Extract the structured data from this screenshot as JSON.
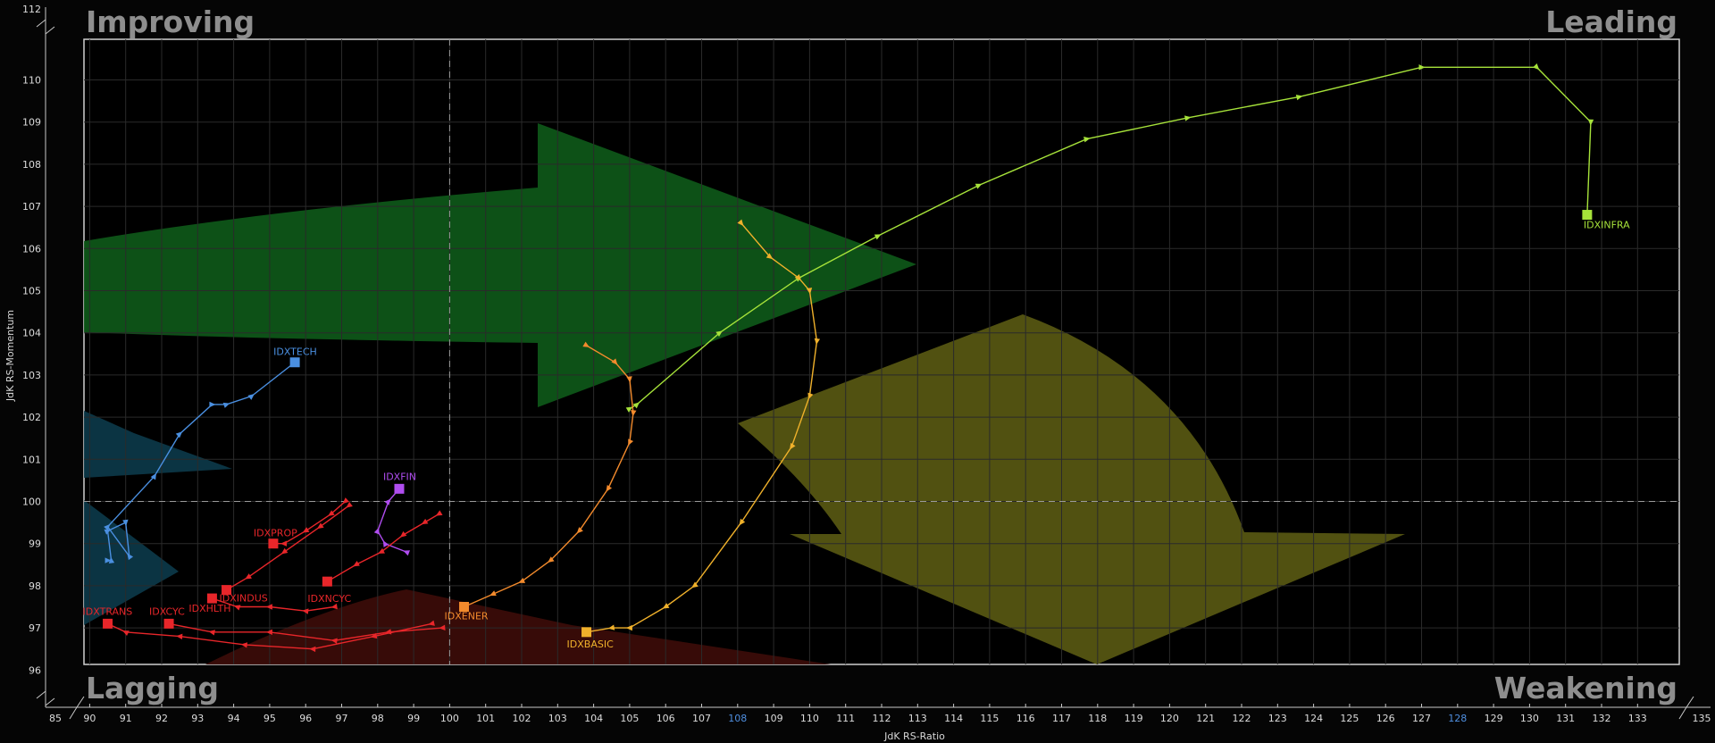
{
  "chart_data": {
    "type": "scatter",
    "subtype": "relative-rotation-graph",
    "xlabel": "JdK RS-Ratio",
    "ylabel": "JdK RS-Momentum",
    "xlim": [
      85,
      135
    ],
    "ylim": [
      96,
      112
    ],
    "x_ticks": [
      85,
      90,
      91,
      92,
      93,
      94,
      95,
      96,
      97,
      98,
      99,
      100,
      101,
      102,
      103,
      104,
      105,
      106,
      107,
      108,
      109,
      110,
      111,
      112,
      113,
      114,
      115,
      116,
      117,
      118,
      119,
      120,
      121,
      122,
      123,
      124,
      125,
      126,
      127,
      128,
      129,
      130,
      131,
      132,
      133,
      135
    ],
    "y_ticks": [
      96,
      97,
      98,
      99,
      100,
      101,
      102,
      103,
      104,
      105,
      106,
      107,
      108,
      109,
      110,
      112
    ],
    "center": [
      100,
      100
    ],
    "grid": true,
    "quadrants": {
      "top_left": "Improving",
      "top_right": "Leading",
      "bottom_left": "Lagging",
      "bottom_right": "Weakening"
    },
    "series": [
      {
        "name": "IDXINFRA",
        "color": "#a6e23a",
        "x": [
          105.0,
          105.2,
          107.5,
          109.7,
          111.9,
          114.7,
          117.7,
          120.5,
          123.6,
          127.0,
          130.2,
          131.7,
          131.6
        ],
        "y": [
          102.2,
          102.3,
          104.0,
          105.3,
          106.3,
          107.5,
          108.6,
          109.1,
          109.6,
          110.3,
          110.3,
          109.0,
          106.8
        ]
      },
      {
        "name": "IDXBASIC",
        "color": "#f0b12b",
        "x": [
          108.1,
          108.9,
          109.7,
          110.0,
          110.2,
          110.0,
          109.5,
          108.1,
          106.8,
          106.0,
          105.0,
          104.5,
          103.8
        ],
        "y": [
          106.6,
          105.8,
          105.3,
          105.0,
          103.8,
          102.5,
          101.3,
          99.5,
          98.0,
          97.5,
          97.0,
          97.0,
          96.9
        ]
      },
      {
        "name": "IDXENER",
        "color": "#f28a2c",
        "x": [
          103.8,
          104.6,
          105.0,
          105.1,
          105.0,
          104.4,
          103.6,
          102.8,
          102.0,
          101.2,
          100.4
        ],
        "y": [
          103.7,
          103.3,
          102.9,
          102.1,
          101.4,
          100.3,
          99.3,
          98.6,
          98.1,
          97.8,
          97.5
        ]
      },
      {
        "name": "IDXTECH",
        "color": "#4a8fe0",
        "x": [
          90.5,
          90.6,
          90.5,
          91.0,
          91.1,
          90.5,
          91.8,
          92.5,
          93.4,
          93.8,
          94.5,
          95.7
        ],
        "y": [
          98.6,
          98.6,
          99.3,
          99.5,
          98.7,
          99.4,
          100.6,
          101.6,
          102.3,
          102.3,
          102.5,
          103.3
        ]
      },
      {
        "name": "IDXFIN",
        "color": "#b04df0",
        "x": [
          98.8,
          98.2,
          98.0,
          98.3,
          98.6
        ],
        "y": [
          98.8,
          99.0,
          99.3,
          100.0,
          100.3
        ]
      },
      {
        "name": "IDXPROP",
        "color": "#e8262a",
        "x": [
          97.1,
          96.7,
          96.0,
          95.4,
          95.1
        ],
        "y": [
          100.0,
          99.7,
          99.3,
          99.0,
          99.0
        ]
      },
      {
        "name": "IDXNCYC",
        "color": "#e8262a",
        "x": [
          99.7,
          99.3,
          98.7,
          98.1,
          97.4,
          96.6
        ],
        "y": [
          99.7,
          99.5,
          99.2,
          98.8,
          98.5,
          98.1
        ]
      },
      {
        "name": "IDXINDUS",
        "color": "#e8262a",
        "x": [
          97.2,
          96.4,
          95.4,
          94.4,
          93.8
        ],
        "y": [
          99.9,
          99.4,
          98.8,
          98.2,
          97.9
        ]
      },
      {
        "name": "IDXHLTH",
        "color": "#e8262a",
        "x": [
          96.8,
          96.0,
          95.0,
          94.1,
          93.4
        ],
        "y": [
          97.5,
          97.4,
          97.5,
          97.5,
          97.7
        ]
      },
      {
        "name": "IDXCYC",
        "color": "#e8262a",
        "x": [
          99.8,
          98.3,
          96.8,
          95.0,
          93.4,
          92.2
        ],
        "y": [
          97.0,
          96.9,
          96.7,
          96.9,
          96.9,
          97.1
        ]
      },
      {
        "name": "IDXTRANS",
        "color": "#e8262a",
        "x": [
          99.5,
          97.9,
          96.2,
          94.3,
          92.5,
          91.0,
          90.5
        ],
        "y": [
          97.1,
          96.8,
          96.5,
          96.6,
          96.8,
          96.9,
          97.1
        ]
      }
    ],
    "label_offsets": {
      "IDXINFRA": [
        -4,
        15
      ],
      "IDXBASIC": [
        -22,
        17
      ],
      "IDXENER": [
        -22,
        14
      ],
      "IDXTECH": [
        -24,
        -8
      ],
      "IDXFIN": [
        -18,
        -10
      ],
      "IDXPROP": [
        -22,
        -8
      ],
      "IDXNCYC": [
        -22,
        23
      ],
      "IDXINDUS": [
        -8,
        13
      ],
      "IDXHLTH": [
        -26,
        15
      ],
      "IDXCYC": [
        -22,
        -10
      ],
      "IDXTRANS": [
        -28,
        -10
      ]
    }
  }
}
